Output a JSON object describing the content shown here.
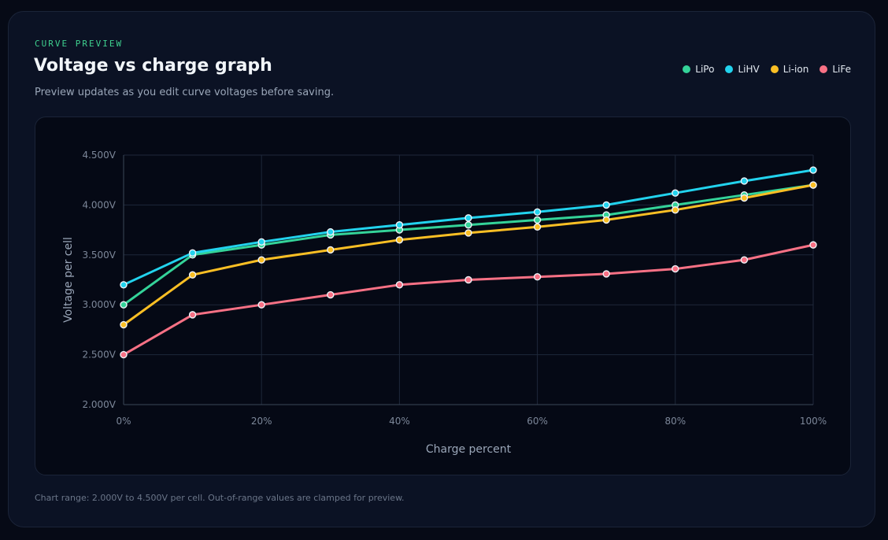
{
  "header": {
    "eyebrow": "CURVE PREVIEW",
    "title": "Voltage vs charge graph",
    "subtitle": "Preview updates as you edit curve voltages before saving."
  },
  "footnote": "Chart range: 2.000V to 4.500V per cell. Out-of-range values are clamped for preview.",
  "chart_data": {
    "type": "line",
    "title": "Voltage vs charge graph",
    "xlabel": "Charge percent",
    "ylabel": "Voltage per cell",
    "x": [
      0,
      10,
      20,
      30,
      40,
      50,
      60,
      70,
      80,
      90,
      100
    ],
    "x_tick_values": [
      0,
      20,
      40,
      60,
      80,
      100
    ],
    "x_tick_labels": [
      "0%",
      "20%",
      "40%",
      "60%",
      "80%",
      "100%"
    ],
    "y_tick_values": [
      2.0,
      2.5,
      3.0,
      3.5,
      4.0,
      4.5
    ],
    "y_tick_labels": [
      "2.000V",
      "2.500V",
      "3.000V",
      "3.500V",
      "4.000V",
      "4.500V"
    ],
    "xlim": [
      0,
      100
    ],
    "ylim": [
      2.0,
      4.5
    ],
    "grid": true,
    "legend_position": "top-right",
    "series": [
      {
        "name": "LiPo",
        "color": "#34d399",
        "values": [
          3.0,
          3.5,
          3.6,
          3.7,
          3.75,
          3.8,
          3.85,
          3.9,
          4.0,
          4.1,
          4.2
        ]
      },
      {
        "name": "LiHV",
        "color": "#22d3ee",
        "values": [
          3.2,
          3.52,
          3.63,
          3.73,
          3.8,
          3.87,
          3.93,
          4.0,
          4.12,
          4.24,
          4.35
        ]
      },
      {
        "name": "Li-ion",
        "color": "#fbbf24",
        "values": [
          2.8,
          3.3,
          3.45,
          3.55,
          3.65,
          3.72,
          3.78,
          3.85,
          3.95,
          4.07,
          4.2
        ]
      },
      {
        "name": "LiFe",
        "color": "#f87185",
        "values": [
          2.5,
          2.9,
          3.0,
          3.1,
          3.2,
          3.25,
          3.28,
          3.31,
          3.36,
          3.45,
          3.6
        ]
      }
    ]
  }
}
